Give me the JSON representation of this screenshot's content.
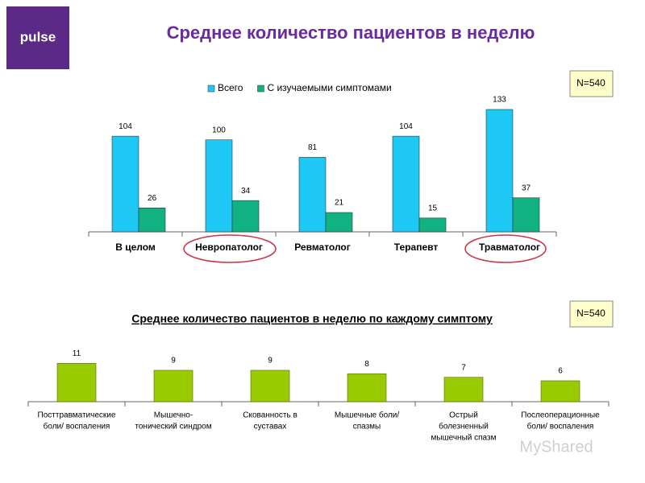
{
  "logo": "pulse",
  "title": "Среднее количество пациентов в неделю",
  "watermark": "MyShared",
  "chart_data": [
    {
      "type": "bar",
      "annotation": "N=540",
      "legend": "top",
      "categories": [
        "В целом",
        "Невропатолог",
        "Ревматолог",
        "Терапевт",
        "Травматолог"
      ],
      "series": [
        {
          "name": "Всего",
          "color": "#1ec8f5",
          "values": [
            104,
            100,
            81,
            104,
            133
          ]
        },
        {
          "name": "С изучаемыми симптомами",
          "color": "#10b282",
          "values": [
            26,
            34,
            21,
            15,
            37
          ]
        }
      ],
      "ylim": [
        0,
        140
      ]
    },
    {
      "type": "bar",
      "title": "Среднее количество пациентов в неделю по каждому симптому",
      "annotation": "N=540",
      "categories": [
        [
          "Посттравматические",
          "боли/ воспаления"
        ],
        [
          "Мышечно-",
          "тонический синдром"
        ],
        [
          "Скованность в",
          "суставах"
        ],
        [
          "Мышечные боли/",
          "спазмы"
        ],
        [
          "Острый",
          "болезненный",
          "мышечный спазм"
        ],
        [
          "Послеоперационные",
          "боли/ воспаления"
        ]
      ],
      "values": [
        11,
        9,
        9,
        8,
        7,
        6
      ],
      "color": "#99cc00",
      "ylim": [
        0,
        12
      ]
    }
  ]
}
